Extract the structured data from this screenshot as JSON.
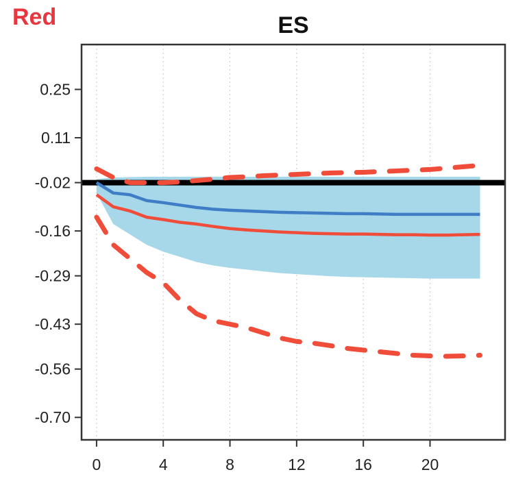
{
  "corner_label": "Red",
  "colors": {
    "band": "#a7d8e9",
    "blue_line": "#3f7ec6",
    "red": "#f04c3a",
    "zero_line": "#000000",
    "corner_label": "#e8363f"
  },
  "chart_data": {
    "type": "line",
    "title": "ES",
    "xlabel": "",
    "ylabel": "",
    "xlim": [
      -0.9,
      24.5
    ],
    "ylim": [
      -0.765,
      0.38
    ],
    "x_ticks": [
      0,
      4,
      8,
      12,
      16,
      20
    ],
    "x_tick_labels": [
      "0",
      "4",
      "8",
      "12",
      "16",
      "20"
    ],
    "y_ticks": [
      0.25,
      0.11,
      -0.02,
      -0.16,
      -0.29,
      -0.43,
      -0.56,
      -0.7
    ],
    "y_tick_labels": [
      "0.25",
      "0.11",
      "-0.02",
      "-0.16",
      "-0.29",
      "-0.43",
      "-0.56",
      "-0.70"
    ],
    "grid": "vertical dotted",
    "reference_line": -0.02,
    "x": [
      0,
      1,
      2,
      3,
      4,
      5,
      6,
      7,
      8,
      9,
      10,
      11,
      12,
      13,
      14,
      15,
      16,
      17,
      18,
      19,
      20,
      21,
      22,
      23
    ],
    "band": {
      "upper": [
        -0.01,
        -0.005,
        -0.004,
        -0.003,
        -0.003,
        -0.003,
        -0.003,
        -0.003,
        -0.003,
        -0.003,
        -0.003,
        -0.003,
        -0.003,
        -0.003,
        -0.003,
        -0.003,
        -0.003,
        -0.003,
        -0.003,
        -0.003,
        -0.003,
        -0.003,
        -0.003,
        -0.003
      ],
      "lower": [
        -0.05,
        -0.14,
        -0.17,
        -0.2,
        -0.22,
        -0.235,
        -0.25,
        -0.26,
        -0.267,
        -0.272,
        -0.277,
        -0.282,
        -0.285,
        -0.288,
        -0.291,
        -0.293,
        -0.294,
        -0.295,
        -0.296,
        -0.297,
        -0.298,
        -0.298,
        -0.298,
        -0.298
      ]
    },
    "series": [
      {
        "style": "solid",
        "color": "blue",
        "values": [
          -0.02,
          -0.05,
          -0.055,
          -0.072,
          -0.078,
          -0.085,
          -0.092,
          -0.097,
          -0.1,
          -0.102,
          -0.104,
          -0.106,
          -0.107,
          -0.108,
          -0.109,
          -0.11,
          -0.11,
          -0.111,
          -0.112,
          -0.112,
          -0.112,
          -0.112,
          -0.112,
          -0.112
        ]
      },
      {
        "style": "solid",
        "color": "red",
        "values": [
          -0.055,
          -0.09,
          -0.102,
          -0.12,
          -0.127,
          -0.135,
          -0.14,
          -0.147,
          -0.153,
          -0.157,
          -0.16,
          -0.163,
          -0.165,
          -0.167,
          -0.168,
          -0.169,
          -0.169,
          -0.17,
          -0.171,
          -0.171,
          -0.172,
          -0.172,
          -0.171,
          -0.17
        ]
      },
      {
        "style": "dashed",
        "color": "red",
        "values": [
          0.02,
          -0.005,
          -0.02,
          -0.02,
          -0.02,
          -0.018,
          -0.014,
          -0.01,
          -0.005,
          -0.003,
          0.0,
          0.002,
          0.004,
          0.006,
          0.008,
          0.009,
          0.01,
          0.012,
          0.014,
          0.016,
          0.018,
          0.022,
          0.026,
          0.03
        ]
      },
      {
        "style": "dashed",
        "color": "red",
        "values": [
          -0.12,
          -0.2,
          -0.24,
          -0.28,
          -0.31,
          -0.36,
          -0.4,
          -0.42,
          -0.43,
          -0.44,
          -0.455,
          -0.47,
          -0.48,
          -0.485,
          -0.492,
          -0.5,
          -0.505,
          -0.51,
          -0.515,
          -0.52,
          -0.522,
          -0.523,
          -0.522,
          -0.52
        ]
      }
    ]
  }
}
